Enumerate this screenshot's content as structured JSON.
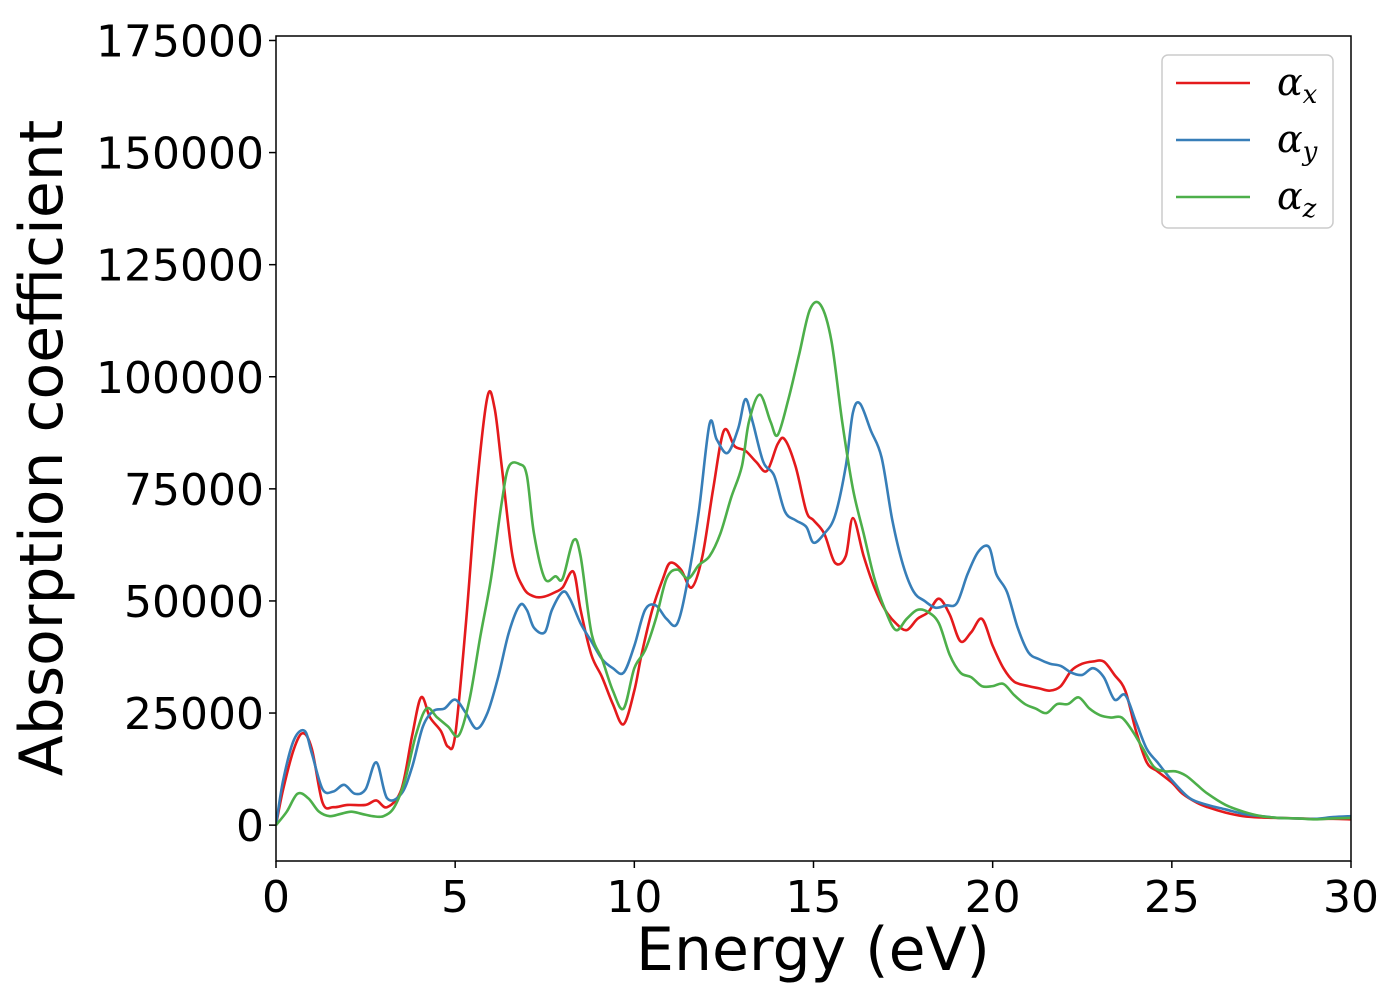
{
  "chart_data": {
    "type": "line",
    "title": "",
    "xlabel": "Energy (eV)",
    "ylabel": "Absorption coefficient",
    "xlim": [
      0,
      30
    ],
    "ylim": [
      -8000,
      176000
    ],
    "xticks": [
      0,
      5,
      10,
      15,
      20,
      25,
      30
    ],
    "xtick_labels": [
      "0",
      "5",
      "10",
      "15",
      "20",
      "25",
      "30"
    ],
    "yticks": [
      0,
      25000,
      50000,
      75000,
      100000,
      125000,
      150000,
      175000
    ],
    "ytick_labels": [
      "0",
      "25000",
      "50000",
      "75000",
      "100000",
      "125000",
      "150000",
      "175000"
    ],
    "grid": false,
    "legend_position": "top-right",
    "series": [
      {
        "name": "α",
        "subscript": "x",
        "color": "#e41a1c",
        "x": [
          0.0,
          0.2,
          0.5,
          0.75,
          1.0,
          1.3,
          1.6,
          2.0,
          2.5,
          2.8,
          3.1,
          3.5,
          3.8,
          4.05,
          4.3,
          4.6,
          4.8,
          5.0,
          5.3,
          5.6,
          5.9,
          6.1,
          6.3,
          6.6,
          6.9,
          7.2,
          7.5,
          7.8,
          8.0,
          8.3,
          8.5,
          8.8,
          9.1,
          9.4,
          9.7,
          10.0,
          10.2,
          10.5,
          10.8,
          11.0,
          11.3,
          11.6,
          11.9,
          12.2,
          12.5,
          12.8,
          13.1,
          13.4,
          13.7,
          14.0,
          14.2,
          14.5,
          14.8,
          15.0,
          15.3,
          15.6,
          15.9,
          16.1,
          16.4,
          16.7,
          17.0,
          17.3,
          17.6,
          17.9,
          18.2,
          18.5,
          18.8,
          19.1,
          19.4,
          19.7,
          20.0,
          20.3,
          20.6,
          21.0,
          21.3,
          21.6,
          21.9,
          22.2,
          22.5,
          22.8,
          23.1,
          23.4,
          23.7,
          24.0,
          24.3,
          24.6,
          25.0,
          25.3,
          25.7,
          26.0,
          26.5,
          27.0,
          27.5,
          28.0,
          28.5,
          29.0,
          29.5,
          30.0
        ],
        "y": [
          0,
          8000,
          17000,
          20500,
          17000,
          5000,
          4000,
          4500,
          4500,
          5500,
          4000,
          8000,
          20000,
          28500,
          24000,
          21000,
          17500,
          20000,
          45000,
          75000,
          95500,
          93000,
          80000,
          60000,
          53000,
          51000,
          51000,
          52000,
          53000,
          56500,
          48000,
          38000,
          33000,
          27000,
          22500,
          30000,
          38000,
          48000,
          55000,
          58500,
          57000,
          53000,
          60000,
          75000,
          88000,
          84500,
          83500,
          81000,
          79000,
          85000,
          86000,
          80000,
          70000,
          68000,
          65000,
          58500,
          60000,
          68500,
          60000,
          53000,
          48000,
          45000,
          43500,
          46000,
          47500,
          50500,
          47000,
          41000,
          43000,
          46000,
          40000,
          35000,
          32000,
          31000,
          30500,
          30000,
          31000,
          34500,
          36000,
          36500,
          36500,
          33500,
          30000,
          21000,
          14000,
          12000,
          9500,
          7000,
          5000,
          4000,
          2800,
          2000,
          1700,
          1600,
          1500,
          1400,
          1400,
          1300
        ]
      },
      {
        "name": "α",
        "subscript": "y",
        "color": "#377eb8",
        "x": [
          0.0,
          0.2,
          0.5,
          0.8,
          1.0,
          1.3,
          1.6,
          1.9,
          2.2,
          2.5,
          2.8,
          3.1,
          3.5,
          3.8,
          4.1,
          4.4,
          4.7,
          5.0,
          5.3,
          5.6,
          5.9,
          6.2,
          6.5,
          6.8,
          7.0,
          7.2,
          7.5,
          7.7,
          8.0,
          8.2,
          8.5,
          8.8,
          9.1,
          9.4,
          9.7,
          10.0,
          10.3,
          10.6,
          10.9,
          11.2,
          11.5,
          11.8,
          12.1,
          12.3,
          12.6,
          12.9,
          13.1,
          13.3,
          13.6,
          13.9,
          14.2,
          14.5,
          14.8,
          15.0,
          15.3,
          15.6,
          15.9,
          16.1,
          16.3,
          16.6,
          16.9,
          17.2,
          17.5,
          17.8,
          18.1,
          18.4,
          18.7,
          19.0,
          19.3,
          19.6,
          19.9,
          20.1,
          20.4,
          20.7,
          21.0,
          21.3,
          21.6,
          21.9,
          22.2,
          22.5,
          22.8,
          23.1,
          23.4,
          23.7,
          24.0,
          24.3,
          24.6,
          25.0,
          25.5,
          26.0,
          26.5,
          27.0,
          27.5,
          28.0,
          28.5,
          29.0,
          29.5,
          30.0
        ],
        "y": [
          0,
          10000,
          19000,
          21000,
          16000,
          8000,
          7500,
          9000,
          7000,
          8000,
          14000,
          6000,
          7000,
          13000,
          22000,
          25500,
          26000,
          28000,
          25000,
          21500,
          25000,
          33000,
          43000,
          49000,
          48000,
          44000,
          43000,
          48000,
          52000,
          50500,
          45000,
          41000,
          37000,
          35000,
          34000,
          40000,
          48000,
          49000,
          46000,
          45000,
          55000,
          70000,
          89500,
          86000,
          83000,
          88500,
          95000,
          90000,
          81000,
          78000,
          70000,
          68000,
          66500,
          63000,
          65000,
          69000,
          80000,
          92000,
          94000,
          88000,
          82000,
          68000,
          58000,
          52000,
          50000,
          48500,
          49000,
          49500,
          56000,
          61000,
          62000,
          56000,
          52000,
          44000,
          38500,
          37000,
          36000,
          35500,
          34000,
          33500,
          35000,
          33000,
          28000,
          29000,
          23000,
          17000,
          14000,
          10000,
          6000,
          4500,
          3500,
          2500,
          2000,
          1600,
          1500,
          1400,
          1800,
          2000
        ]
      },
      {
        "name": "α",
        "subscript": "z",
        "color": "#4daf4a",
        "x": [
          0.0,
          0.3,
          0.6,
          0.9,
          1.2,
          1.5,
          1.8,
          2.1,
          2.4,
          2.7,
          3.0,
          3.3,
          3.6,
          3.9,
          4.2,
          4.5,
          4.8,
          5.1,
          5.4,
          5.7,
          6.0,
          6.3,
          6.5,
          6.8,
          7.0,
          7.2,
          7.5,
          7.8,
          8.0,
          8.3,
          8.5,
          8.8,
          9.1,
          9.4,
          9.7,
          10.0,
          10.3,
          10.6,
          10.9,
          11.2,
          11.5,
          11.8,
          12.1,
          12.4,
          12.7,
          13.0,
          13.2,
          13.5,
          13.8,
          14.0,
          14.3,
          14.6,
          14.9,
          15.2,
          15.5,
          15.8,
          16.1,
          16.4,
          16.7,
          17.0,
          17.3,
          17.6,
          17.9,
          18.2,
          18.5,
          18.8,
          19.1,
          19.4,
          19.7,
          20.0,
          20.3,
          20.6,
          20.9,
          21.2,
          21.5,
          21.8,
          22.1,
          22.4,
          22.7,
          23.0,
          23.3,
          23.6,
          23.9,
          24.2,
          24.5,
          24.8,
          25.1,
          25.4,
          25.7,
          26.0,
          26.5,
          27.0,
          27.5,
          28.0,
          28.5,
          29.0,
          29.5,
          30.0
        ],
        "y": [
          0,
          3000,
          7000,
          6000,
          3000,
          2000,
          2500,
          3000,
          2500,
          2000,
          2000,
          4000,
          10000,
          20000,
          26000,
          24000,
          22000,
          20000,
          28000,
          42000,
          55000,
          72000,
          80000,
          80500,
          78000,
          65000,
          55000,
          55500,
          55000,
          63500,
          60000,
          43000,
          37000,
          30000,
          26000,
          35000,
          39000,
          46000,
          55000,
          57000,
          55000,
          58000,
          60000,
          65000,
          73000,
          80000,
          90000,
          96000,
          90000,
          87000,
          95000,
          105000,
          115000,
          116000,
          108000,
          90000,
          75000,
          65000,
          55000,
          48000,
          43500,
          46000,
          48000,
          47500,
          45000,
          38000,
          34000,
          33000,
          31000,
          31000,
          31500,
          29000,
          27000,
          26000,
          25000,
          27000,
          27000,
          28500,
          26000,
          24500,
          24000,
          24000,
          21000,
          17000,
          13000,
          12000,
          12000,
          11000,
          9000,
          7000,
          4500,
          3000,
          2000,
          1600,
          1500,
          1300,
          1500,
          1600
        ]
      }
    ]
  }
}
